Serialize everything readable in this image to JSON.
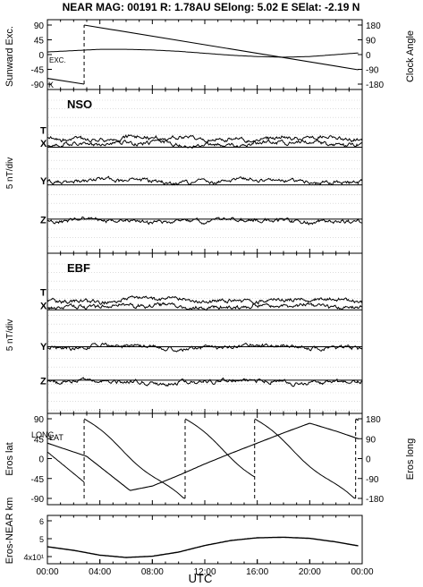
{
  "header": {
    "text": "NEAR MAG: 00191  R: 1.78AU  SElong:    5.02 E  SElat:   -2.19 N"
  },
  "chart_data": {
    "type": "line",
    "xlabel": "UTC",
    "x_ticks": [
      "00:00",
      "04:00",
      "08:00",
      "12:00",
      "16:00",
      "20:00",
      "00:00"
    ],
    "xlim_hours": [
      0,
      24
    ],
    "panels": [
      {
        "id": "sunward",
        "left_label": "Sunward Exc.",
        "right_label": "Clock Angle",
        "left_ticks": [
          "90",
          "45",
          "0",
          "-45",
          "-90"
        ],
        "right_ticks": [
          "180",
          "90",
          "0",
          "-90",
          "-180"
        ],
        "left_ylim": [
          -90,
          90
        ],
        "right_ylim": [
          -180,
          180
        ],
        "series_labels": [
          "EXC.",
          "K"
        ],
        "exc_hours": [
          0,
          2,
          4,
          6,
          8,
          10,
          12,
          14,
          16,
          18,
          20,
          22,
          23.7
        ],
        "exc_values": [
          8,
          12,
          16,
          16,
          14,
          10,
          4,
          -2,
          -6,
          -8,
          -6,
          0,
          5
        ],
        "clock_hours": [
          0,
          2.8,
          2.8,
          23.7
        ],
        "clock_values": [
          -145,
          -180,
          180,
          -93
        ]
      },
      {
        "id": "nso",
        "title": "NSO",
        "ylabel": "5 nT/div",
        "components": [
          {
            "name": "T",
            "offset": 0.5
          },
          {
            "name": "X",
            "offset": -0.3
          },
          {
            "name": "Y",
            "offset": -0.3
          },
          {
            "name": "Z",
            "offset": 0.3
          }
        ]
      },
      {
        "id": "ebf",
        "title": "EBF",
        "ylabel": "5 nT/div",
        "components": [
          {
            "name": "T",
            "offset": 0.3
          },
          {
            "name": "X",
            "offset": -0.3
          },
          {
            "name": "Y",
            "offset": 0.4
          },
          {
            "name": "Z",
            "offset": 0.3
          }
        ]
      },
      {
        "id": "eros",
        "left_label": "Eros lat",
        "right_label": "Eros long",
        "left_ticks": [
          "90",
          "45",
          "0",
          "-45",
          "-90"
        ],
        "right_ticks": [
          "180",
          "90",
          "0",
          "-90",
          "-180"
        ],
        "left_ylim": [
          -90,
          90
        ],
        "right_ylim": [
          -180,
          180
        ],
        "series_labels": [
          "LAT",
          "LONG"
        ],
        "lat_hours": [
          0,
          3,
          6.3,
          8,
          10,
          12,
          14,
          16,
          18,
          20,
          22,
          23.7
        ],
        "lat_values": [
          35,
          5,
          -72,
          -62,
          -38,
          -12,
          12,
          35,
          58,
          80,
          62,
          45
        ],
        "long_breaks": [
          2.8,
          10.5,
          15.8,
          23.5
        ],
        "long_top": 180,
        "long_bottom": -180
      },
      {
        "id": "distance",
        "left_label": "Eros-NEAR km",
        "left_ticks": [
          "6",
          "5",
          "4x10¹"
        ],
        "dist_hours": [
          0,
          2,
          4,
          6,
          8,
          10,
          12,
          14,
          16,
          18,
          20,
          22,
          23.7
        ],
        "dist_values": [
          4.55,
          4.35,
          4.08,
          3.95,
          4.02,
          4.25,
          4.62,
          4.9,
          5.05,
          5.08,
          5.02,
          4.82,
          4.6
        ]
      }
    ]
  }
}
